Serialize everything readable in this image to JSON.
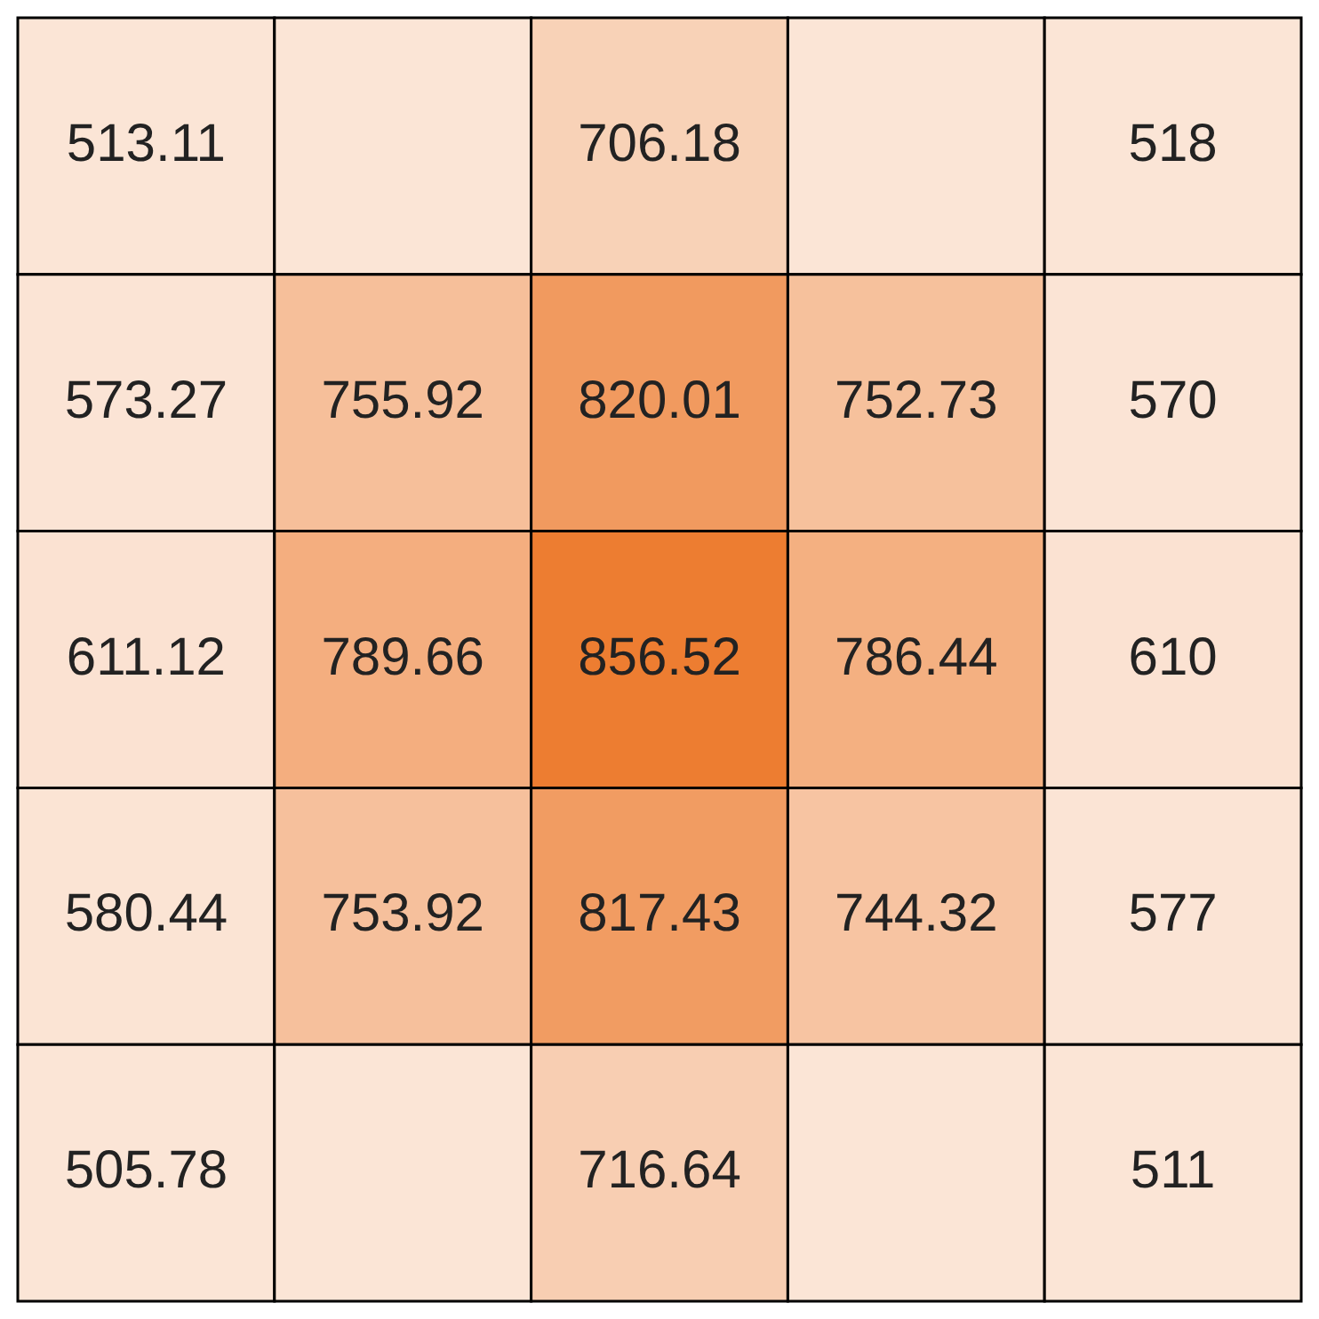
{
  "chart_data": {
    "type": "heatmap",
    "data_labels": true,
    "categories": [
      null,
      null,
      null,
      null,
      null
    ],
    "y_categories": [
      null,
      null,
      null,
      null,
      null
    ],
    "cells": [
      [
        513.11,
        null,
        706.18,
        null,
        518
      ],
      [
        573.27,
        755.92,
        820.01,
        752.73,
        570
      ],
      [
        611.12,
        789.66,
        856.52,
        786.44,
        610
      ],
      [
        580.44,
        753.92,
        817.43,
        744.32,
        577
      ],
      [
        505.78,
        null,
        716.64,
        null,
        511
      ]
    ]
  }
}
